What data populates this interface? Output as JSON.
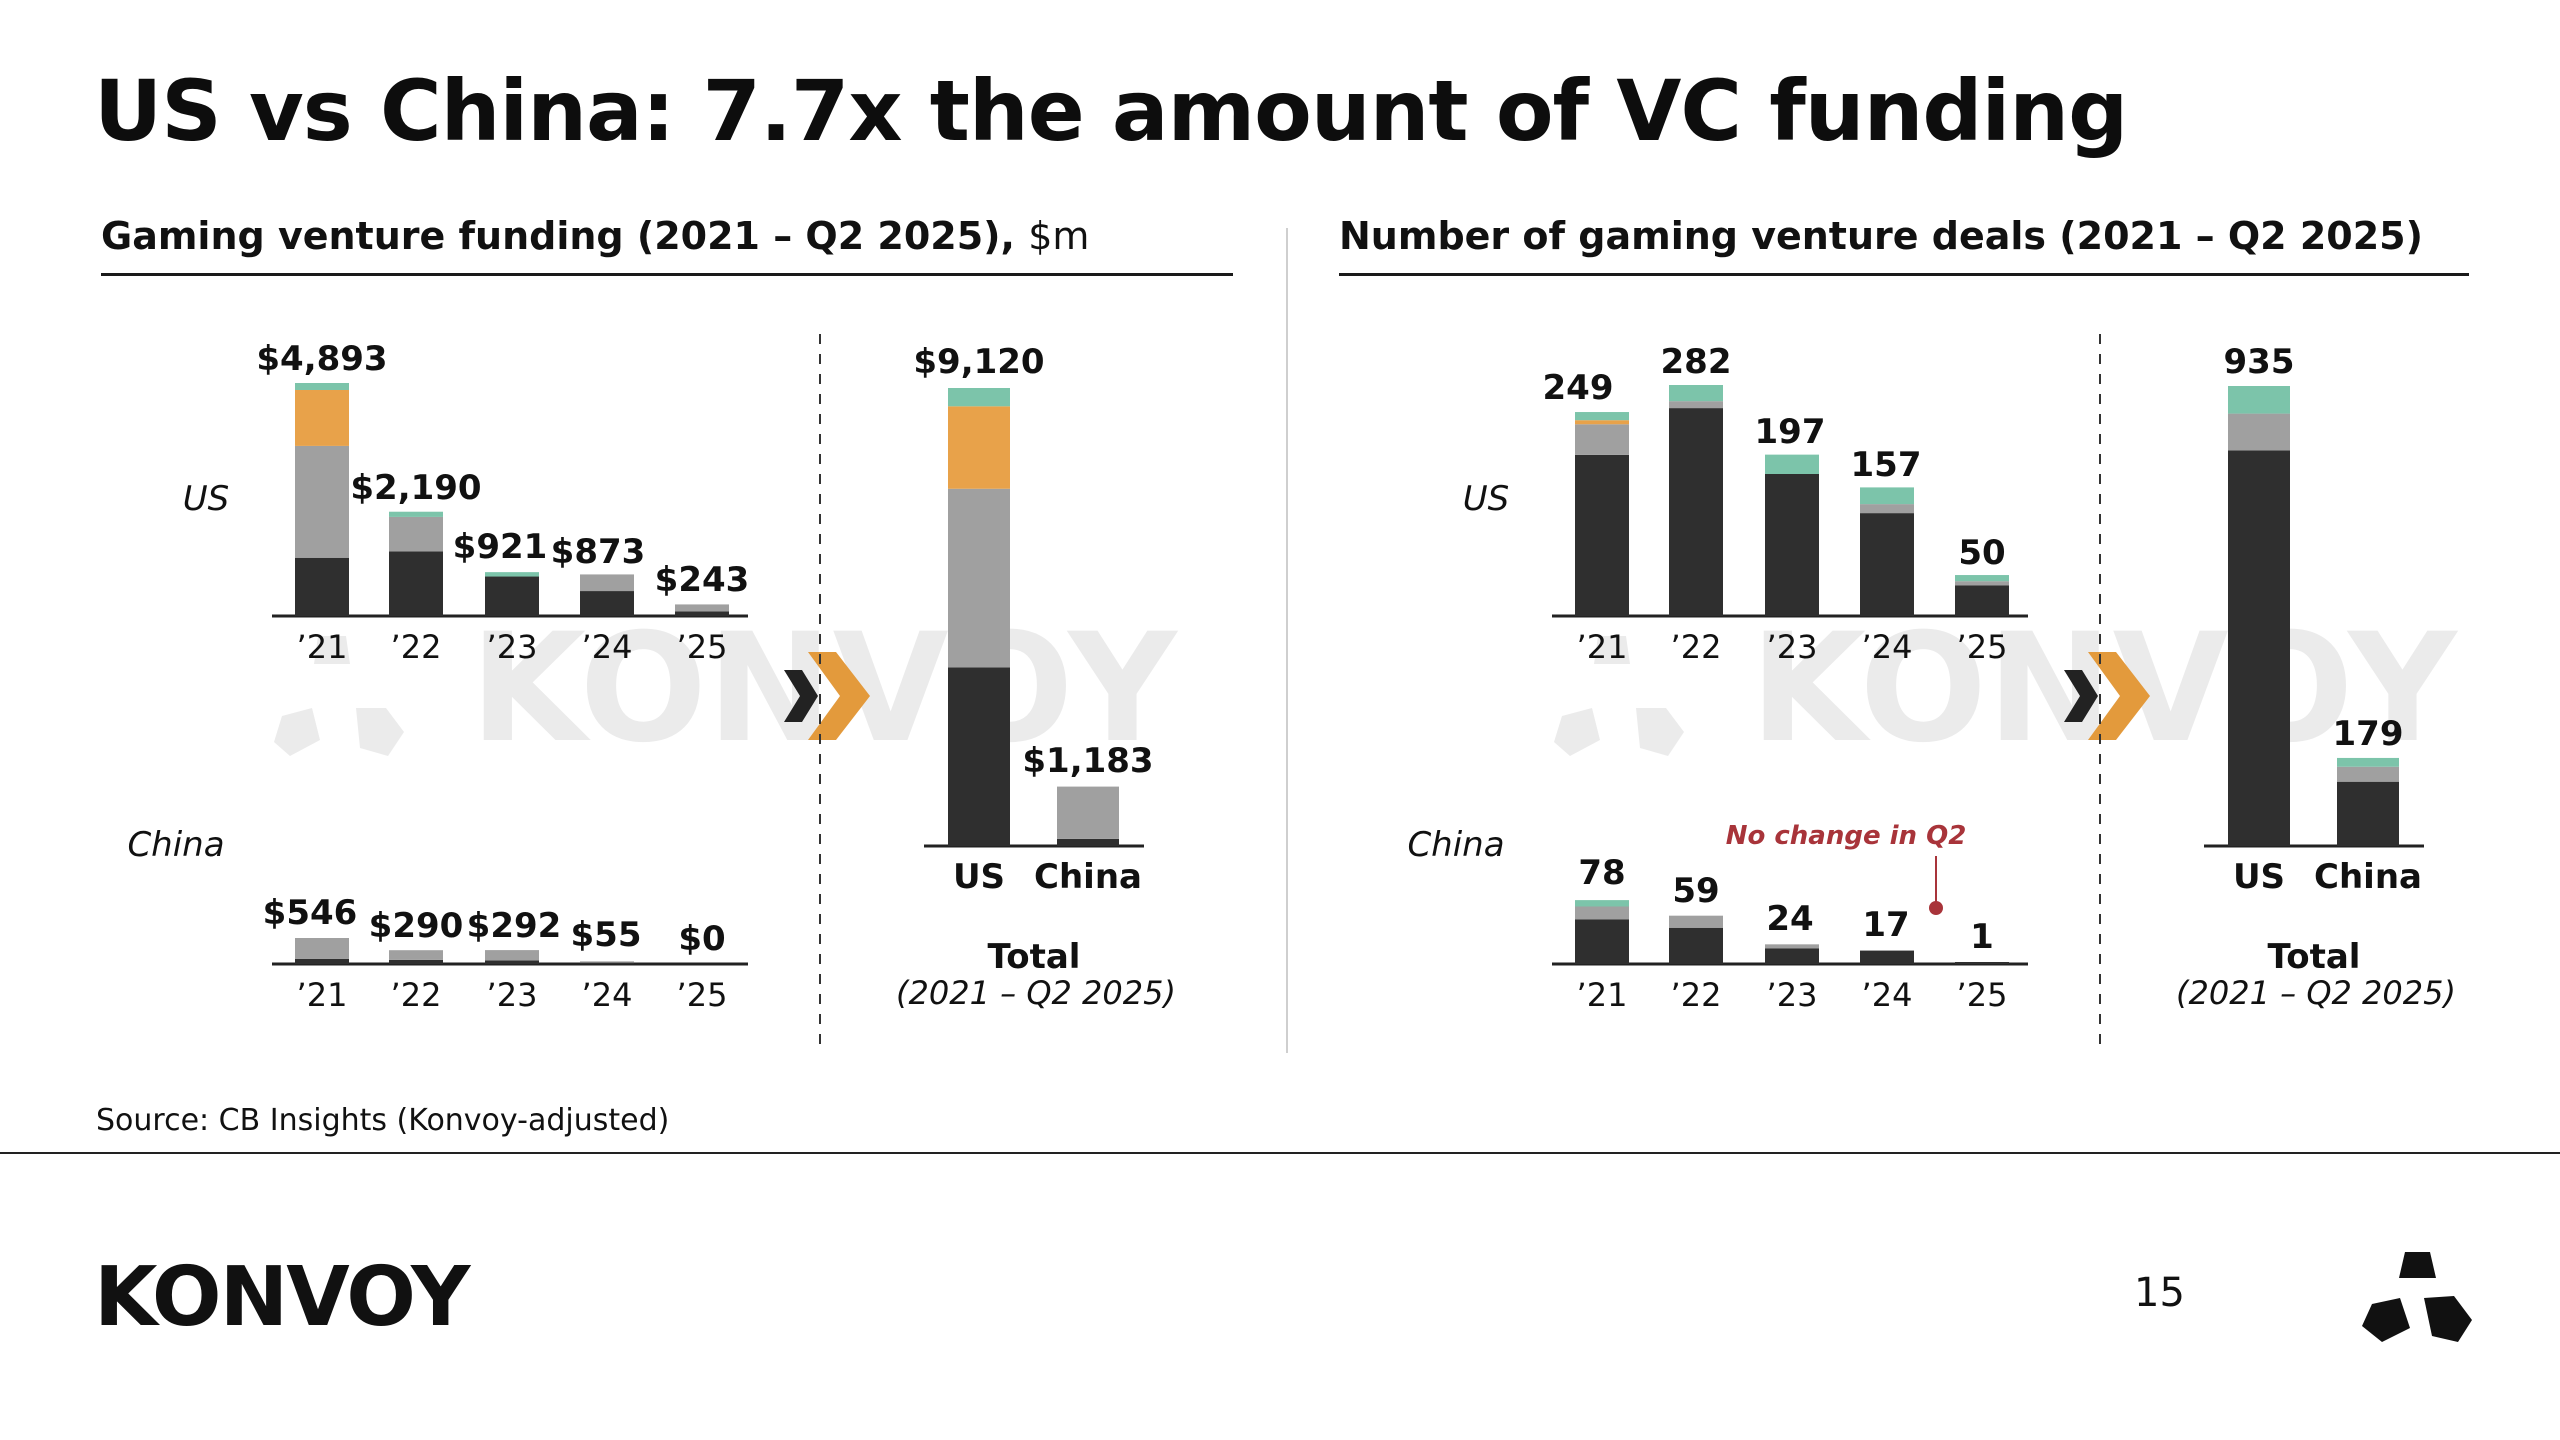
{
  "title": "US vs China: 7.7x the amount of VC funding",
  "colors": {
    "dark": "#2f2f2f",
    "gray": "#a0a0a0",
    "orange": "#e8a24a",
    "teal": "#7cc4aa",
    "annotation": "#a8343a",
    "watermark": "#ebebeb"
  },
  "chart_data": [
    {
      "type": "bar",
      "title": "Gaming venture funding (2021 – Q2 2025),",
      "title_unit": "$m",
      "row_labels": [
        "US",
        "China"
      ],
      "categories": [
        "’21",
        "’22",
        "’23",
        "’24",
        "’25"
      ],
      "us": {
        "values": [
          4893,
          2190,
          921,
          873,
          243
        ],
        "labels": [
          "$4,893",
          "$2,190",
          "$921",
          "$873",
          "$243"
        ]
      },
      "china": {
        "values": [
          546,
          290,
          292,
          55,
          0
        ],
        "labels": [
          "$546",
          "$290",
          "$292",
          "$55",
          "$0"
        ]
      },
      "total": {
        "categories": [
          "US",
          "China"
        ],
        "values": [
          9120,
          1183
        ],
        "labels": [
          "$9,120",
          "$1,183"
        ],
        "label": "Total",
        "sublabel": "(2021 – Q2 2025)"
      }
    },
    {
      "type": "bar",
      "title": "Number of gaming venture deals (2021 – Q2 2025)",
      "row_labels": [
        "US",
        "China"
      ],
      "categories": [
        "’21",
        "’22",
        "’23",
        "’24",
        "’25"
      ],
      "us": {
        "values": [
          249,
          282,
          197,
          157,
          50
        ],
        "labels": [
          "249",
          "282",
          "197",
          "157",
          "50"
        ]
      },
      "china": {
        "values": [
          78,
          59,
          24,
          17,
          1
        ],
        "labels": [
          "78",
          "59",
          "24",
          "17",
          "1"
        ]
      },
      "annotation": "No change in Q2",
      "total": {
        "categories": [
          "US",
          "China"
        ],
        "values": [
          935,
          179
        ],
        "labels": [
          "935",
          "179"
        ],
        "label": "Total",
        "sublabel": "(2021 – Q2 2025)"
      }
    }
  ],
  "source": "Source: CB Insights (Konvoy-adjusted)",
  "watermark": "KONVOY",
  "footer": {
    "logo": "KONVOY",
    "page_number": "15"
  }
}
